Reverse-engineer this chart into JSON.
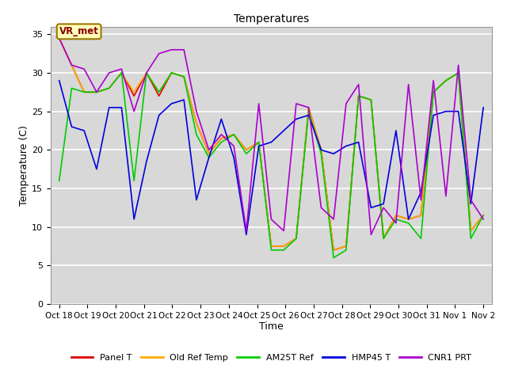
{
  "title": "Temperatures",
  "xlabel": "Time",
  "ylabel": "Temperature (C)",
  "ylim": [
    0,
    36
  ],
  "yticks": [
    0,
    5,
    10,
    15,
    20,
    25,
    30,
    35
  ],
  "background_color": "#ffffff",
  "plot_bg_color": "#d8d8d8",
  "annotation_text": "VR_met",
  "x_labels": [
    "Oct 18",
    "Oct 19",
    "Oct 20",
    "Oct 21",
    "Oct 22",
    "Oct 23",
    "Oct 24",
    "Oct 25",
    "Oct 26",
    "Oct 27",
    "Oct 28",
    "Oct 29",
    "Oct 30",
    "Oct 31",
    "Nov 1",
    "Nov 2"
  ],
  "series": {
    "Panel T": {
      "color": "#dd0000",
      "linewidth": 1.2,
      "values": [
        34.5,
        31.0,
        27.5,
        27.5,
        28.0,
        30.0,
        27.0,
        30.0,
        27.0,
        30.0,
        29.5,
        23.5,
        19.5,
        21.5,
        22.0,
        20.0,
        21.0,
        7.5,
        7.5,
        8.5,
        25.5,
        20.0,
        7.0,
        7.5,
        27.0,
        26.5,
        8.5,
        11.5,
        11.0,
        11.5,
        27.5,
        29.0,
        30.0,
        9.5,
        11.5
      ]
    },
    "Old Ref Temp": {
      "color": "#ffaa00",
      "linewidth": 1.2,
      "values": [
        34.5,
        31.0,
        27.5,
        27.5,
        28.0,
        30.0,
        27.5,
        30.0,
        27.5,
        30.0,
        29.5,
        23.5,
        19.5,
        21.5,
        22.0,
        20.0,
        21.0,
        7.5,
        7.5,
        8.5,
        25.5,
        20.0,
        7.0,
        7.5,
        27.0,
        26.5,
        8.5,
        11.5,
        11.0,
        11.5,
        27.5,
        29.0,
        30.0,
        9.5,
        11.5
      ]
    },
    "AM25T Ref": {
      "color": "#00cc00",
      "linewidth": 1.2,
      "values": [
        16.0,
        28.0,
        27.5,
        27.5,
        28.0,
        30.0,
        16.0,
        30.0,
        27.5,
        30.0,
        29.5,
        22.0,
        19.0,
        21.0,
        22.0,
        19.5,
        21.0,
        7.0,
        7.0,
        8.5,
        25.0,
        19.5,
        6.0,
        7.0,
        27.0,
        26.5,
        8.5,
        11.0,
        10.5,
        8.5,
        27.5,
        29.0,
        30.0,
        8.5,
        11.5
      ]
    },
    "HMP45 T": {
      "color": "#0000dd",
      "linewidth": 1.2,
      "values": [
        29.0,
        23.0,
        22.5,
        17.5,
        25.5,
        25.5,
        11.0,
        18.5,
        24.5,
        26.0,
        26.5,
        13.5,
        19.0,
        24.0,
        19.0,
        9.0,
        20.5,
        21.0,
        22.5,
        24.0,
        24.5,
        20.0,
        19.5,
        20.5,
        21.0,
        12.5,
        13.0,
        22.5,
        11.0,
        14.5,
        24.5,
        25.0,
        25.0,
        13.0,
        25.5
      ]
    },
    "CNR1 PRT": {
      "color": "#aa00cc",
      "linewidth": 1.2,
      "values": [
        34.5,
        31.0,
        30.5,
        27.5,
        30.0,
        30.5,
        25.0,
        30.0,
        32.5,
        33.0,
        33.0,
        25.0,
        20.0,
        22.0,
        20.5,
        9.5,
        26.0,
        11.0,
        9.5,
        26.0,
        25.5,
        12.5,
        11.0,
        26.0,
        28.5,
        9.0,
        12.5,
        10.5,
        28.5,
        13.5,
        29.0,
        14.0,
        31.0,
        13.5,
        11.0
      ]
    }
  },
  "legend_entries": [
    "Panel T",
    "Old Ref Temp",
    "AM25T Ref",
    "HMP45 T",
    "CNR1 PRT"
  ],
  "legend_colors": [
    "#dd0000",
    "#ffaa00",
    "#00cc00",
    "#0000dd",
    "#aa00cc"
  ]
}
